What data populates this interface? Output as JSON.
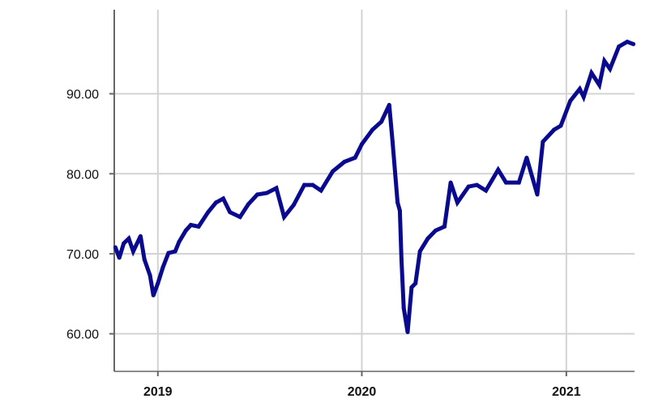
{
  "chart_data": {
    "type": "line",
    "title": "",
    "xlabel": "",
    "ylabel": "",
    "xlim": [
      "2018-10-15",
      "2021-05-03"
    ],
    "ylim": [
      55.3,
      100.5
    ],
    "grid": true,
    "line_color": "#0a0a8f",
    "yticks": [
      60,
      70,
      80,
      90
    ],
    "ytick_labels": [
      "60.00",
      "70.00",
      "80.00",
      "90.00"
    ],
    "xticks": [
      "2019-01-01",
      "2020-01-01",
      "2021-01-01"
    ],
    "xtick_labels": [
      "2019",
      "2020",
      "2021"
    ],
    "series": [
      {
        "x": [
          "2018-10-17",
          "2018-10-24",
          "2018-11-01",
          "2018-11-10",
          "2018-11-18",
          "2018-12-01",
          "2018-12-08",
          "2018-12-18",
          "2018-12-24",
          "2019-01-01",
          "2019-01-10",
          "2019-01-20",
          "2019-02-01",
          "2019-02-08",
          "2019-02-20",
          "2019-03-01",
          "2019-03-15",
          "2019-04-01",
          "2019-04-15",
          "2019-04-28",
          "2019-05-10",
          "2019-05-28",
          "2019-06-12",
          "2019-06-28",
          "2019-07-15",
          "2019-08-01",
          "2019-08-15",
          "2019-09-01",
          "2019-09-20",
          "2019-10-05",
          "2019-10-20",
          "2019-11-10",
          "2019-12-01",
          "2019-12-20",
          "2020-01-01",
          "2020-01-20",
          "2020-02-05",
          "2020-02-19",
          "2020-02-25",
          "2020-03-05",
          "2020-03-09",
          "2020-03-12",
          "2020-03-16",
          "2020-03-23",
          "2020-03-30",
          "2020-04-06",
          "2020-04-14",
          "2020-04-28",
          "2020-05-12",
          "2020-05-28",
          "2020-06-08",
          "2020-06-20",
          "2020-07-10",
          "2020-07-25",
          "2020-08-10",
          "2020-09-01",
          "2020-09-15",
          "2020-10-08",
          "2020-10-22",
          "2020-11-10",
          "2020-11-20",
          "2020-12-10",
          "2020-12-22",
          "2021-01-08",
          "2021-01-25",
          "2021-02-01",
          "2021-02-15",
          "2021-03-01",
          "2021-03-10",
          "2021-03-20",
          "2021-04-05",
          "2021-04-20",
          "2021-05-01"
        ],
        "y": [
          70.8,
          69.5,
          71.3,
          71.9,
          70.3,
          72.2,
          69.3,
          67.3,
          64.8,
          66.3,
          68.3,
          70.1,
          70.3,
          71.5,
          72.9,
          73.6,
          73.4,
          75.2,
          76.4,
          76.9,
          75.2,
          74.6,
          76.2,
          77.4,
          77.6,
          78.2,
          74.6,
          76.1,
          78.6,
          78.6,
          77.9,
          80.3,
          81.5,
          82.0,
          83.7,
          85.5,
          86.5,
          88.6,
          84.0,
          76.4,
          75.4,
          69.3,
          63.2,
          60.2,
          65.8,
          66.3,
          70.3,
          71.9,
          72.9,
          73.4,
          78.9,
          76.4,
          78.4,
          78.6,
          77.9,
          80.5,
          78.9,
          78.9,
          82.0,
          77.4,
          84.0,
          85.5,
          86.0,
          89.1,
          90.6,
          89.6,
          92.6,
          91.1,
          94.1,
          93.1,
          95.9,
          96.5,
          96.2
        ]
      }
    ]
  }
}
